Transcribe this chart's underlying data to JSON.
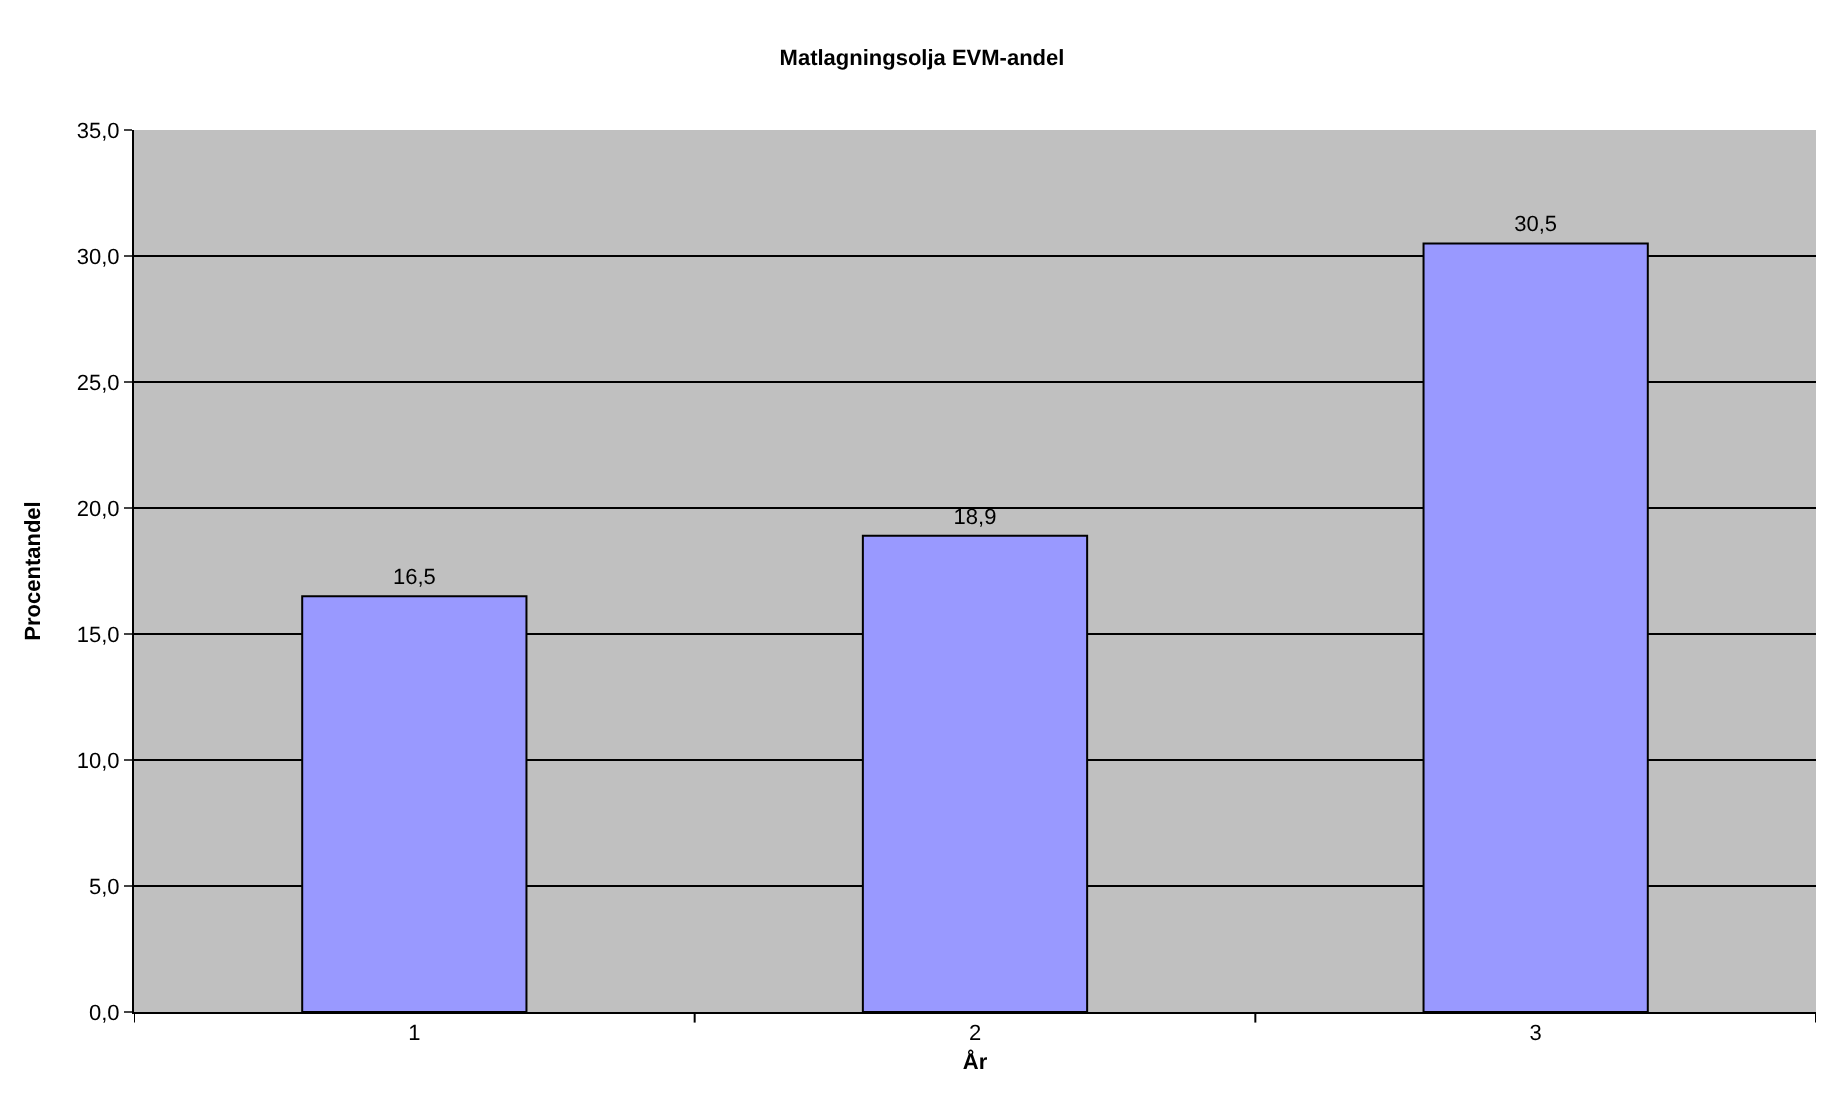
{
  "chart_data": {
    "type": "bar",
    "title": "Matlagningsolja EVM-andel",
    "xlabel": "År",
    "ylabel": "Procentandel",
    "categories": [
      "1",
      "2",
      "3"
    ],
    "series": [
      {
        "color": "#9999ff",
        "values": [
          16.5,
          18.9,
          30.5
        ],
        "value_labels": [
          "16,5",
          "18,9",
          "30,5"
        ]
      }
    ],
    "ylim": [
      0,
      35
    ],
    "yticks": [
      {
        "value": 0,
        "label": "0,0"
      },
      {
        "value": 5,
        "label": "5,0"
      },
      {
        "value": 10,
        "label": "10,0"
      },
      {
        "value": 15,
        "label": "15,0"
      },
      {
        "value": 20,
        "label": "20,0"
      },
      {
        "value": 25,
        "label": "25,0"
      },
      {
        "value": 30,
        "label": "30,0"
      },
      {
        "value": 35,
        "label": "35,0"
      }
    ],
    "grid": "y",
    "legend": false
  }
}
